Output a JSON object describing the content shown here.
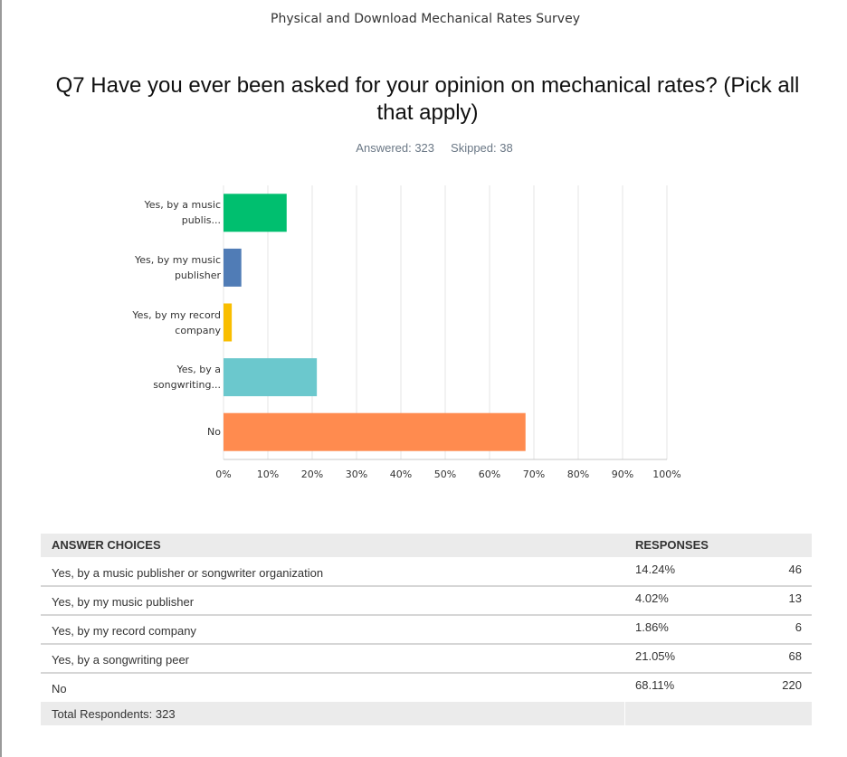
{
  "header": {
    "survey_title": "Physical and Download Mechanical Rates Survey",
    "question": "Q7 Have you ever been asked for your opinion on mechanical rates? (Pick all that apply)",
    "answered": "Answered: 323",
    "skipped": "Skipped: 38"
  },
  "chart_data": {
    "type": "bar",
    "orientation": "horizontal",
    "categories": [
      "Yes, by a music publis...",
      "Yes, by my music publisher",
      "Yes, by my record company",
      "Yes, by a songwriting...",
      "No"
    ],
    "values": [
      14.24,
      4.02,
      1.86,
      21.05,
      68.11
    ],
    "colors": [
      "#00bf6f",
      "#507cb6",
      "#f9be00",
      "#6bc8cd",
      "#ff8b4f"
    ],
    "xlim": [
      0,
      100
    ],
    "xticks": [
      {
        "value": 0,
        "label": "0%"
      },
      {
        "value": 10,
        "label": "10%"
      },
      {
        "value": 20,
        "label": "20%"
      },
      {
        "value": 30,
        "label": "30%"
      },
      {
        "value": 40,
        "label": "40%"
      },
      {
        "value": 50,
        "label": "50%"
      },
      {
        "value": 60,
        "label": "60%"
      },
      {
        "value": 70,
        "label": "70%"
      },
      {
        "value": 80,
        "label": "80%"
      },
      {
        "value": 90,
        "label": "90%"
      },
      {
        "value": 100,
        "label": "100%"
      }
    ],
    "grid": true
  },
  "table": {
    "columns": [
      "ANSWER CHOICES",
      "RESPONSES"
    ],
    "rows": [
      [
        "Yes, by a music publisher or songwriter organization",
        "14.24%",
        "46"
      ],
      [
        "Yes, by my music publisher",
        "4.02%",
        "13"
      ],
      [
        "Yes, by my record company",
        "1.86%",
        "6"
      ],
      [
        "Yes, by a songwriting peer",
        "21.05%",
        "68"
      ],
      [
        "No",
        "68.11%",
        "220"
      ]
    ],
    "footer": "Total Respondents: 323"
  }
}
